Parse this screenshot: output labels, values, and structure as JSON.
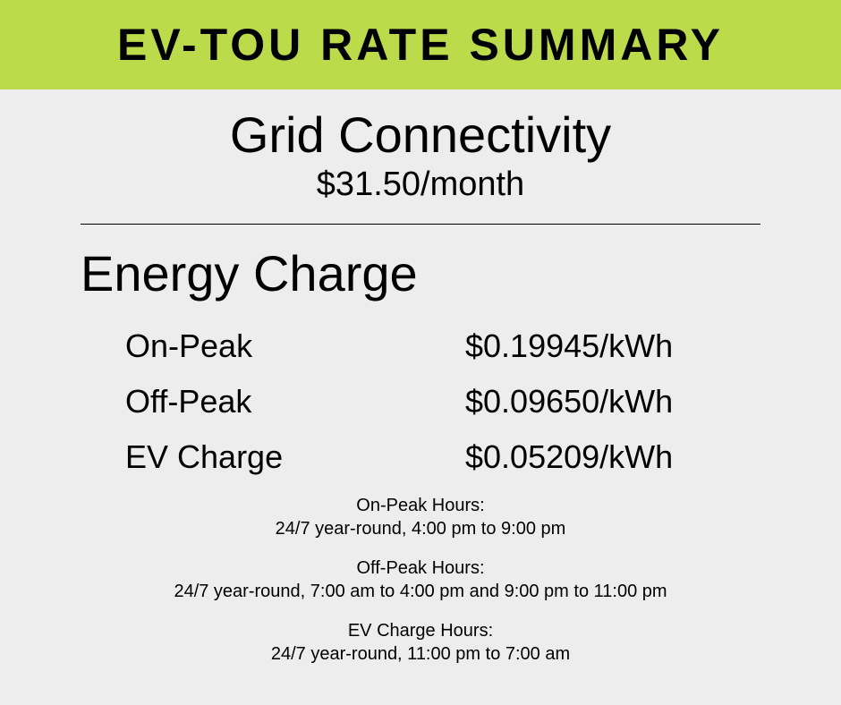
{
  "banner": {
    "title": "EV-TOU RATE SUMMARY",
    "background_color": "#bcdb4b"
  },
  "page": {
    "background_color": "#ededed"
  },
  "grid": {
    "title": "Grid Connectivity",
    "price": "$31.50/month"
  },
  "energy": {
    "title": "Energy Charge",
    "rates": [
      {
        "label": "On-Peak",
        "value": "$0.19945/kWh"
      },
      {
        "label": "Off-Peak",
        "value": "$0.09650/kWh"
      },
      {
        "label": "EV Charge",
        "value": "$0.05209/kWh"
      }
    ]
  },
  "hours": [
    {
      "title": "On-Peak Hours:",
      "detail": "24/7 year-round, 4:00 pm to 9:00 pm"
    },
    {
      "title": "Off-Peak Hours:",
      "detail": "24/7 year-round, 7:00 am to 4:00 pm and 9:00 pm to 11:00 pm"
    },
    {
      "title": "EV Charge Hours:",
      "detail": "24/7 year-round, 11:00 pm to 7:00 am"
    }
  ]
}
